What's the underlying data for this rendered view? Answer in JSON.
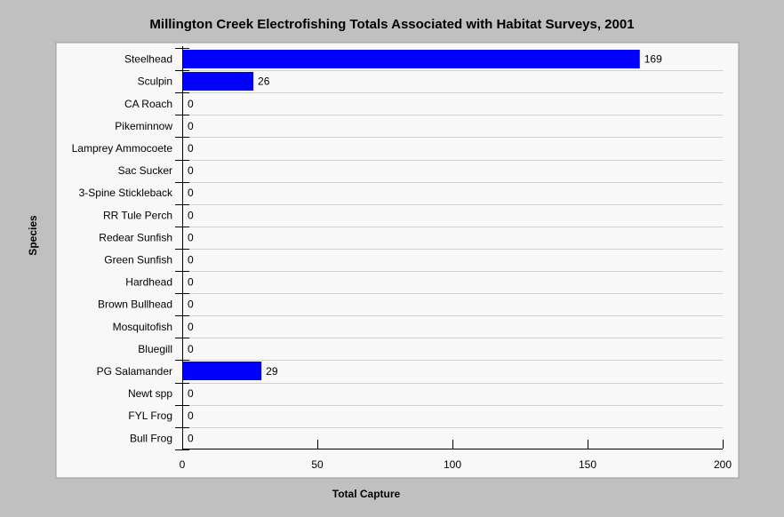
{
  "chart_data": {
    "type": "bar",
    "orientation": "horizontal",
    "title": "Millington Creek Electrofishing Totals Associated with Habitat Surveys, 2001",
    "xlabel": "Total Capture",
    "ylabel": "Species",
    "categories": [
      "Steelhead",
      "Sculpin",
      "CA Roach",
      "Pikeminnow",
      "Lamprey Ammocoete",
      "Sac Sucker",
      "3-Spine Stickleback",
      "RR Tule Perch",
      "Redear Sunfish",
      "Green Sunfish",
      "Hardhead",
      "Brown Bullhead",
      "Mosquitofish",
      "Bluegill",
      "PG Salamander",
      "Newt spp",
      "FYL Frog",
      "Bull Frog"
    ],
    "values": [
      169,
      26,
      0,
      0,
      0,
      0,
      0,
      0,
      0,
      0,
      0,
      0,
      0,
      0,
      29,
      0,
      0,
      0
    ],
    "xlim": [
      0,
      200
    ],
    "xticks": [
      0,
      50,
      100,
      150,
      200
    ],
    "grid": true,
    "bar_color": "#0000ff"
  }
}
